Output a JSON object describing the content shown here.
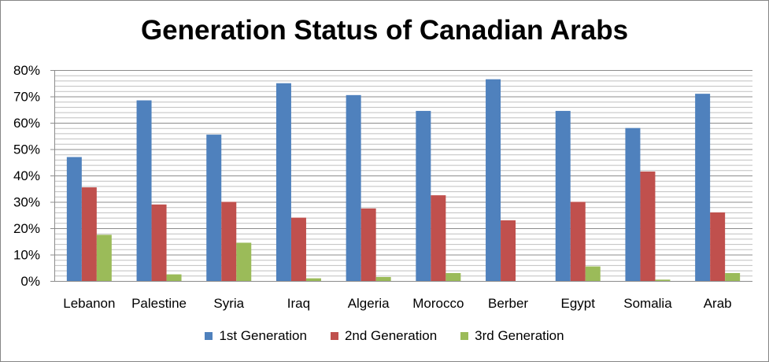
{
  "chart_data": {
    "type": "bar",
    "title": "Generation Status of Canadian Arabs",
    "categories": [
      "Lebanon",
      "Palestine",
      "Syria",
      "Iraq",
      "Algeria",
      "Morocco",
      "Berber",
      "Egypt",
      "Somalia",
      "Arab"
    ],
    "series": [
      {
        "name": "1st Generation",
        "color": "#4F81BD",
        "values": [
          47,
          68.5,
          55.5,
          75,
          70.5,
          64.5,
          76.5,
          64.5,
          58,
          71
        ]
      },
      {
        "name": "2nd Generation",
        "color": "#C0504D",
        "values": [
          35.5,
          29,
          30,
          24,
          27.5,
          32.5,
          23,
          30,
          41.5,
          26
        ]
      },
      {
        "name": "3rd Generation",
        "color": "#9BBB59",
        "values": [
          17.5,
          2.5,
          14.5,
          1,
          1.5,
          3,
          0,
          5.5,
          0.5,
          3
        ]
      }
    ],
    "ylim": [
      0,
      80
    ],
    "yticks": [
      "0%",
      "10%",
      "20%",
      "30%",
      "40%",
      "50%",
      "60%",
      "70%",
      "80%"
    ],
    "grid": true,
    "legend_position": "bottom"
  }
}
